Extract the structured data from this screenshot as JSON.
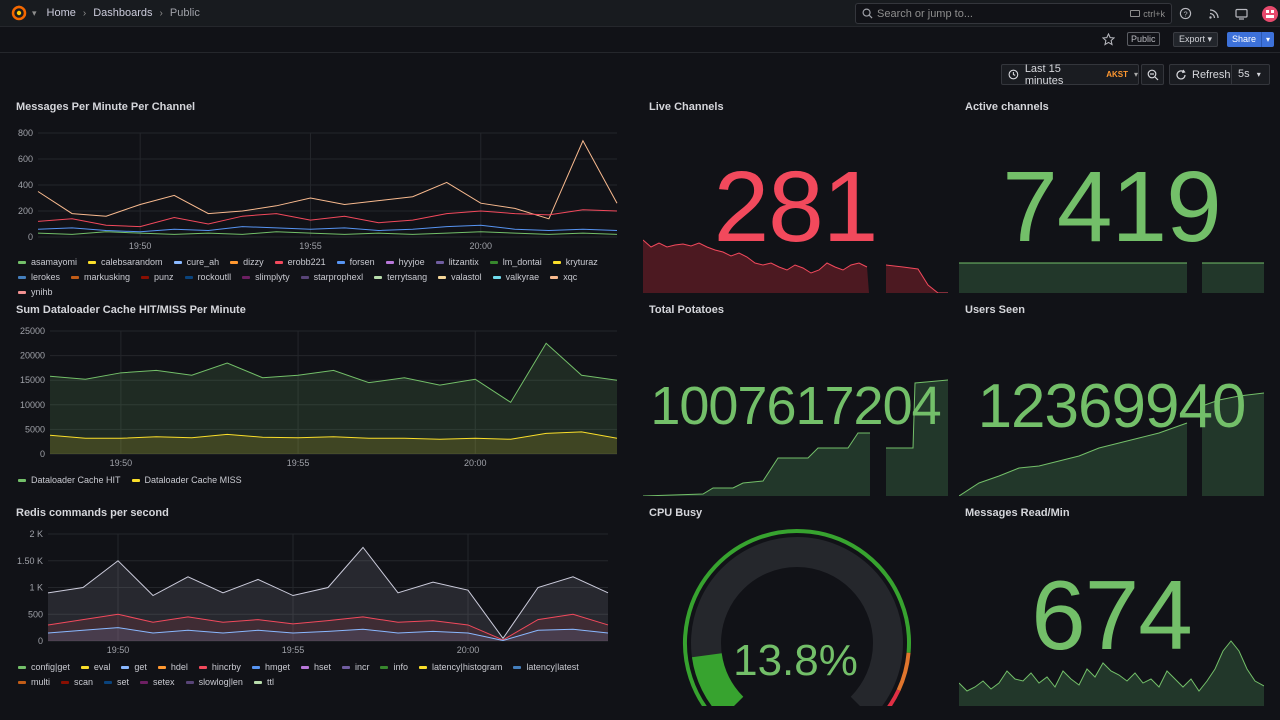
{
  "breadcrumb": {
    "home": "Home",
    "dashboards": "Dashboards",
    "current": "Public"
  },
  "search": {
    "placeholder": "Search or jump to...",
    "shortcut": "ctrl+k"
  },
  "toolbar": {
    "public_badge": "Public",
    "export_label": "Export",
    "share_label": "Share"
  },
  "time": {
    "range": "Last 15 minutes",
    "timezone": "AKST",
    "refresh_label": "Refresh",
    "interval": "5s"
  },
  "colors": {
    "green": "#73bf69",
    "red": "#f2495c",
    "background": "#111217"
  },
  "panels": {
    "messages": {
      "title": "Messages Per Minute Per Channel",
      "legend": [
        {
          "name": "asamayomi",
          "color": "#73bf69"
        },
        {
          "name": "calebsarandom",
          "color": "#fade2a"
        },
        {
          "name": "cure_ah",
          "color": "#8ab8ff"
        },
        {
          "name": "dizzy",
          "color": "#ff9830"
        },
        {
          "name": "erobb221",
          "color": "#f2495c"
        },
        {
          "name": "forsen",
          "color": "#5794f2"
        },
        {
          "name": "hyyjoe",
          "color": "#b877d9"
        },
        {
          "name": "litzantix",
          "color": "#705da0"
        },
        {
          "name": "lm_dontai",
          "color": "#37872d"
        },
        {
          "name": "kryturaz",
          "color": "#fade2a"
        },
        {
          "name": "lerokes",
          "color": "#447ebc"
        },
        {
          "name": "markusking",
          "color": "#c15c17"
        },
        {
          "name": "punz",
          "color": "#890f02"
        },
        {
          "name": "rockoutll",
          "color": "#0a437c"
        },
        {
          "name": "slimplyty",
          "color": "#6d1f62"
        },
        {
          "name": "starprophexl",
          "color": "#584477"
        },
        {
          "name": "terrytsang",
          "color": "#b7dbab"
        },
        {
          "name": "valastol",
          "color": "#f4d598"
        },
        {
          "name": "valkyrae",
          "color": "#70dbed"
        },
        {
          "name": "xqc",
          "color": "#f9ba8f"
        },
        {
          "name": "ynihb",
          "color": "#f29191"
        }
      ],
      "x_ticks": [
        "19:50",
        "19:55",
        "20:00"
      ],
      "y_ticks": [
        "800",
        "600",
        "400",
        "200",
        "0"
      ]
    },
    "cache": {
      "title": "Sum Dataloader Cache HIT/MISS Per Minute",
      "legend": [
        {
          "name": "Dataloader Cache HIT",
          "color": "#73bf69"
        },
        {
          "name": "Dataloader Cache MISS",
          "color": "#fade2a"
        }
      ],
      "x_ticks": [
        "19:50",
        "19:55",
        "20:00"
      ],
      "y_ticks": [
        "25000",
        "20000",
        "15000",
        "10000",
        "5000",
        "0"
      ]
    },
    "redis": {
      "title": "Redis commands per second",
      "legend": [
        {
          "name": "config|get",
          "color": "#73bf69"
        },
        {
          "name": "eval",
          "color": "#fade2a"
        },
        {
          "name": "get",
          "color": "#8ab8ff"
        },
        {
          "name": "hdel",
          "color": "#ff9830"
        },
        {
          "name": "hincrby",
          "color": "#f2495c"
        },
        {
          "name": "hmget",
          "color": "#5794f2"
        },
        {
          "name": "hset",
          "color": "#b877d9"
        },
        {
          "name": "incr",
          "color": "#705da0"
        },
        {
          "name": "info",
          "color": "#37872d"
        },
        {
          "name": "latency|histogram",
          "color": "#fade2a"
        },
        {
          "name": "latency|latest",
          "color": "#447ebc"
        },
        {
          "name": "multi",
          "color": "#c15c17"
        },
        {
          "name": "scan",
          "color": "#890f02"
        },
        {
          "name": "set",
          "color": "#0a437c"
        },
        {
          "name": "setex",
          "color": "#6d1f62"
        },
        {
          "name": "slowlog|len",
          "color": "#584477"
        },
        {
          "name": "ttl",
          "color": "#b7dbab"
        }
      ],
      "x_ticks": [
        "19:50",
        "19:55",
        "20:00"
      ],
      "y_ticks": [
        "2 K",
        "1.50 K",
        "1 K",
        "500",
        "0"
      ]
    },
    "live_channels": {
      "title": "Live Channels",
      "value": "281"
    },
    "active_channels": {
      "title": "Active channels",
      "value": "7419"
    },
    "total_potatoes": {
      "title": "Total Potatoes",
      "value": "1007617204"
    },
    "users_seen": {
      "title": "Users Seen",
      "value": "12369940"
    },
    "cpu_busy": {
      "title": "CPU Busy",
      "value": "13.8%",
      "percent": 13.8
    },
    "messages_read": {
      "title": "Messages Read/Min",
      "value": "674"
    }
  },
  "chart_data": [
    {
      "type": "line",
      "title": "Messages Per Minute Per Channel",
      "x": [
        "19:47",
        "19:48",
        "19:49",
        "19:50",
        "19:51",
        "19:52",
        "19:53",
        "19:54",
        "19:55",
        "19:56",
        "19:57",
        "19:58",
        "19:59",
        "20:00",
        "20:01",
        "20:02",
        "20:03",
        "20:04"
      ],
      "ylim": [
        0,
        800
      ],
      "series": [
        {
          "name": "xqc",
          "values": [
            350,
            180,
            160,
            250,
            320,
            180,
            200,
            240,
            300,
            250,
            280,
            310,
            420,
            260,
            220,
            140,
            740,
            260
          ]
        },
        {
          "name": "erobb221",
          "values": [
            120,
            140,
            90,
            80,
            150,
            100,
            160,
            180,
            130,
            160,
            110,
            130,
            180,
            200,
            180,
            170,
            210,
            200
          ]
        },
        {
          "name": "forsen",
          "values": [
            60,
            70,
            50,
            40,
            60,
            50,
            80,
            70,
            60,
            70,
            50,
            60,
            80,
            90,
            60,
            50,
            60,
            50
          ]
        },
        {
          "name": "asamayomi",
          "values": [
            30,
            20,
            40,
            30,
            20,
            30,
            20,
            40,
            30,
            20,
            30,
            20,
            30,
            40,
            30,
            20,
            30,
            20
          ]
        }
      ]
    },
    {
      "type": "area",
      "title": "Sum Dataloader Cache HIT/MISS Per Minute",
      "x": [
        "19:48",
        "19:49",
        "19:50",
        "19:51",
        "19:52",
        "19:53",
        "19:54",
        "19:55",
        "19:56",
        "19:57",
        "19:58",
        "19:59",
        "20:00",
        "20:01",
        "20:02",
        "20:03",
        "20:04"
      ],
      "ylim": [
        0,
        25000
      ],
      "series": [
        {
          "name": "Dataloader Cache HIT",
          "values": [
            15800,
            15200,
            16500,
            17000,
            16000,
            18500,
            15500,
            16000,
            17000,
            14500,
            15500,
            14000,
            15200,
            10500,
            22500,
            16000,
            15000
          ]
        },
        {
          "name": "Dataloader Cache MISS",
          "values": [
            3800,
            3200,
            3200,
            3500,
            3300,
            4000,
            3400,
            3300,
            3500,
            3200,
            3200,
            3000,
            3200,
            3000,
            4200,
            4500,
            3200
          ]
        }
      ]
    },
    {
      "type": "line",
      "title": "Redis commands per second",
      "x": [
        "19:48",
        "19:49",
        "19:50",
        "19:51",
        "19:52",
        "19:53",
        "19:54",
        "19:55",
        "19:56",
        "19:57",
        "19:58",
        "19:59",
        "20:00",
        "20:01",
        "20:02",
        "20:03",
        "20:04"
      ],
      "ylim": [
        0,
        2000
      ],
      "series": [
        {
          "name": "config|get",
          "values": [
            900,
            1000,
            1500,
            850,
            1200,
            900,
            1150,
            850,
            1000,
            1750,
            900,
            1100,
            950,
            50,
            1000,
            1200,
            900
          ]
        },
        {
          "name": "hincrby",
          "values": [
            300,
            400,
            500,
            350,
            450,
            350,
            400,
            320,
            380,
            450,
            350,
            380,
            300,
            20,
            400,
            500,
            300
          ]
        },
        {
          "name": "get",
          "values": [
            150,
            200,
            250,
            150,
            200,
            150,
            200,
            150,
            180,
            220,
            150,
            180,
            150,
            10,
            200,
            220,
            150
          ]
        }
      ]
    }
  ]
}
